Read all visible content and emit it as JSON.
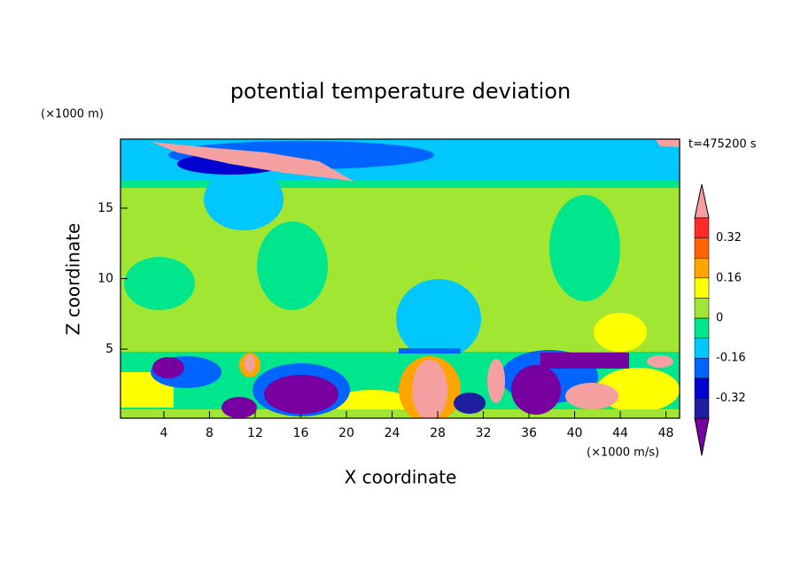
{
  "chart_data": {
    "type": "contour",
    "title": "potential temperature deviation",
    "y_unit": "(×1000 m)",
    "x_unit": "(×1000 m/s)",
    "time_label": "t=475200 s",
    "xlabel": "X coordinate",
    "ylabel": "Z coordinate",
    "xlim": [
      0.2,
      49.2
    ],
    "xticks": [
      4,
      8,
      12,
      16,
      20,
      24,
      28,
      32,
      36,
      40,
      44,
      48
    ],
    "ylim": [
      0.1,
      19.9
    ],
    "yticks": [
      5,
      10,
      15
    ],
    "colorbar": {
      "levels": [
        -0.4,
        -0.32,
        -0.24,
        -0.16,
        -0.08,
        0,
        0.08,
        0.16,
        0.24,
        0.32,
        0.4
      ],
      "ticks": [
        0.32,
        0.16,
        0,
        -0.16,
        -0.32
      ],
      "colors": [
        "#7800a0",
        "#1e1ea0",
        "#0000d0",
        "#0064ff",
        "#00c8ff",
        "#00e68c",
        "#a0e632",
        "#ffff00",
        "#ffa500",
        "#ff6400",
        "#ff2a2a",
        "#f5a0a0"
      ]
    }
  }
}
